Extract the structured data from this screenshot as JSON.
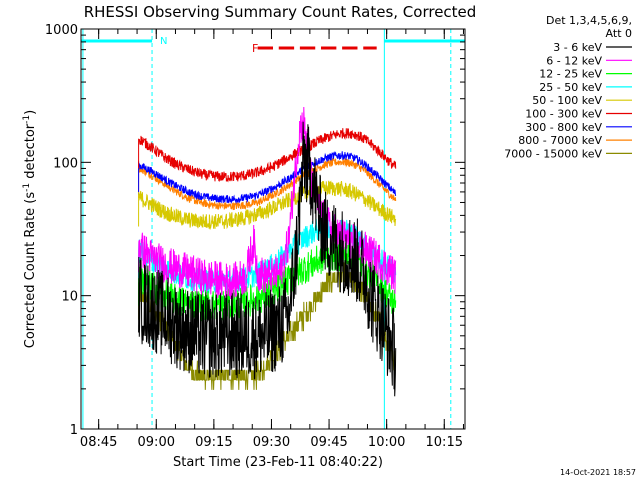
{
  "chart_data": {
    "type": "line",
    "title": "RHESSI Observing Summary Count Rates, Corrected",
    "xlabel": "Start Time (23-Feb-11 08:40:22)",
    "ylabel_main": "Corrected Count Rate (s",
    "ylabel_sup1": "-1",
    "ylabel_mid": " detector",
    "ylabel_sup2": "-1",
    "ylabel_end": ")",
    "yscale": "log",
    "ylim": [
      1,
      1000
    ],
    "xlim_minutes": [
      0,
      100
    ],
    "x_ticks": [
      {
        "min": 4.6,
        "label": "08:45"
      },
      {
        "min": 19.6,
        "label": "09:00"
      },
      {
        "min": 34.6,
        "label": "09:15"
      },
      {
        "min": 49.6,
        "label": "09:30"
      },
      {
        "min": 64.6,
        "label": "09:45"
      },
      {
        "min": 79.6,
        "label": "10:00"
      },
      {
        "min": 94.6,
        "label": "10:15"
      }
    ],
    "y_ticks": [
      {
        "value": 1,
        "label": "1"
      },
      {
        "value": 10,
        "label": "10"
      },
      {
        "value": 100,
        "label": "100"
      },
      {
        "value": 1000,
        "label": "1000"
      }
    ],
    "legend": {
      "title_line1": "Det 1,3,4,5,6,9,",
      "title_line2": "Att 0",
      "placement": "right",
      "entries": [
        {
          "label": "3 - 6 keV",
          "color": "#000000"
        },
        {
          "label": "6 - 12 keV",
          "color": "#ff00ff"
        },
        {
          "label": "12 - 25 keV",
          "color": "#00ff00"
        },
        {
          "label": "25 - 50 keV",
          "color": "#00ffff"
        },
        {
          "label": "50 - 100 keV",
          "color": "#d6c800"
        },
        {
          "label": "100 - 300 keV",
          "color": "#e60000"
        },
        {
          "label": "300 - 800 keV",
          "color": "#0000ff"
        },
        {
          "label": "800 - 7000 keV",
          "color": "#ff8000"
        },
        {
          "label": "7000 - 15000 keV",
          "color": "#8b8b00"
        }
      ]
    },
    "annotations": {
      "night_label": "N",
      "flare_label": "F",
      "night_color": "#00ffff",
      "flare_color": "#e60000",
      "night_segments": [
        [
          0,
          18.5
        ],
        [
          79.0,
          100
        ]
      ],
      "flare_segments": [
        [
          46.0,
          50.0
        ],
        [
          51.5,
          55.5
        ],
        [
          57.0,
          61.0
        ],
        [
          62.5,
          66.5
        ],
        [
          68.0,
          72.0
        ],
        [
          73.5,
          77.0
        ]
      ],
      "dashed_lines_min": [
        18.5,
        96.3
      ],
      "solid_lines_min": [
        0.5,
        79.0
      ]
    },
    "series": [
      {
        "name": "3 - 6 keV",
        "color": "#000000",
        "noise": 0.33,
        "x": [
          15,
          16,
          19,
          22,
          25,
          28,
          31,
          34,
          37,
          40,
          43,
          46,
          48,
          50,
          52,
          54,
          56,
          58,
          60,
          62,
          64,
          66,
          68,
          70,
          72,
          74,
          76,
          78,
          80,
          82
        ],
        "y": [
          10,
          9,
          8,
          7,
          6,
          5.5,
          5,
          5,
          5,
          5,
          5,
          5,
          5,
          5.5,
          6,
          7,
          20,
          110,
          80,
          40,
          28,
          25,
          22,
          20,
          18,
          14,
          9,
          7,
          5,
          3.5
        ]
      },
      {
        "name": "6 - 12 keV",
        "color": "#ff00ff",
        "noise": 0.14,
        "x": [
          15,
          16,
          19,
          22,
          25,
          28,
          31,
          34,
          37,
          40,
          43,
          44,
          45,
          46,
          48,
          50,
          52,
          54,
          56,
          57,
          58,
          59,
          60,
          62,
          64,
          66,
          68,
          70,
          72,
          74,
          76,
          78,
          80,
          82
        ],
        "y": [
          25,
          22,
          19,
          17,
          16,
          15,
          14,
          13.5,
          13,
          13,
          14,
          20,
          25,
          15,
          14,
          14,
          15,
          25,
          100,
          180,
          200,
          130,
          70,
          45,
          35,
          30,
          28,
          26,
          24,
          22,
          20,
          18,
          16,
          14
        ]
      },
      {
        "name": "12 - 25 keV",
        "color": "#00ff00",
        "noise": 0.12,
        "x": [
          15,
          16,
          19,
          22,
          25,
          28,
          31,
          34,
          37,
          40,
          43,
          46,
          48,
          50,
          52,
          54,
          56,
          58,
          60,
          62,
          64,
          66,
          68,
          70,
          72,
          74,
          76,
          78,
          80,
          82
        ],
        "y": [
          14,
          13,
          11.5,
          10,
          9.2,
          8.8,
          8.5,
          8.5,
          8.5,
          8.7,
          9,
          9.5,
          10,
          10.8,
          11.8,
          13,
          14.5,
          16,
          17,
          18.5,
          19.5,
          20,
          20,
          19.5,
          18,
          16,
          14,
          12,
          10,
          8.5
        ]
      },
      {
        "name": "25 - 50 keV",
        "color": "#00ffff",
        "noise": 0.09,
        "x": [
          15,
          16,
          19,
          22,
          25,
          28,
          31,
          34,
          37,
          40,
          43,
          46,
          48,
          50,
          52,
          54,
          56,
          58,
          60,
          62,
          64,
          66,
          68,
          70,
          72,
          74,
          76,
          78,
          80,
          82
        ],
        "y": [
          22,
          21,
          18,
          16,
          14.5,
          13.5,
          13,
          12.8,
          12.8,
          13,
          13.5,
          14.5,
          15.5,
          17,
          19,
          21.5,
          24,
          27,
          29.5,
          31.5,
          33,
          33,
          32,
          30,
          27,
          24,
          21,
          18.5,
          16.5,
          14.5
        ]
      },
      {
        "name": "50 - 100 keV",
        "color": "#d6c800",
        "noise": 0.06,
        "x": [
          15,
          16,
          19,
          22,
          25,
          28,
          31,
          34,
          37,
          40,
          43,
          46,
          48,
          50,
          52,
          54,
          56,
          58,
          60,
          62,
          64,
          66,
          68,
          70,
          72,
          74,
          76,
          78,
          80,
          82
        ],
        "y": [
          55,
          53,
          47,
          42,
          39,
          37,
          36,
          36,
          36,
          37,
          38.5,
          41,
          43,
          45.5,
          48.5,
          51.5,
          55,
          58,
          61,
          63,
          64,
          64,
          63,
          61,
          57,
          53,
          48,
          44,
          40.5,
          37.5
        ]
      },
      {
        "name": "100 - 300 keV",
        "color": "#e60000",
        "noise": 0.04,
        "x": [
          15,
          16,
          19,
          22,
          25,
          28,
          31,
          34,
          37,
          40,
          43,
          46,
          48,
          50,
          52,
          54,
          56,
          58,
          60,
          62,
          64,
          66,
          68,
          70,
          72,
          74,
          76,
          78,
          80,
          82
        ],
        "y": [
          150,
          145,
          125,
          108,
          96,
          88,
          82,
          79,
          78,
          78,
          80,
          84,
          88,
          93,
          100,
          108,
          117,
          126,
          135,
          145,
          153,
          160,
          165,
          166,
          160,
          148,
          133,
          118,
          103,
          92
        ]
      },
      {
        "name": "300 - 800 keV",
        "color": "#0000ff",
        "noise": 0.03,
        "x": [
          15,
          16,
          19,
          22,
          25,
          28,
          31,
          34,
          37,
          40,
          43,
          46,
          48,
          50,
          52,
          54,
          56,
          58,
          60,
          62,
          64,
          66,
          68,
          70,
          72,
          74,
          76,
          78,
          80,
          82
        ],
        "y": [
          95,
          93,
          84,
          74,
          66,
          60,
          56,
          54,
          53,
          53,
          54,
          57,
          60,
          64,
          69,
          75,
          82,
          89,
          96,
          103,
          108,
          112,
          113,
          111,
          105,
          96,
          85,
          75,
          66,
          58
        ]
      },
      {
        "name": "800 - 7000 keV",
        "color": "#ff8000",
        "noise": 0.03,
        "x": [
          15,
          16,
          19,
          22,
          25,
          28,
          31,
          34,
          37,
          40,
          43,
          46,
          48,
          50,
          52,
          54,
          56,
          58,
          60,
          62,
          64,
          66,
          68,
          70,
          72,
          74,
          76,
          78,
          80,
          82
        ],
        "y": [
          90,
          88,
          78,
          68,
          60,
          54,
          50,
          48,
          47,
          47,
          48,
          50,
          53,
          57,
          61,
          67,
          73,
          80,
          86,
          92,
          97,
          100,
          101,
          99,
          94,
          86,
          76,
          67,
          59,
          52
        ]
      },
      {
        "name": "7000 - 15000 keV",
        "color": "#8b8b00",
        "noise": 0.08,
        "step": 0.22,
        "x": [
          15,
          16,
          19,
          22,
          25,
          28,
          31,
          34,
          37,
          40,
          43,
          46,
          48,
          50,
          52,
          54,
          56,
          58,
          60,
          62,
          64,
          66,
          68,
          70,
          72,
          74,
          76,
          78,
          80,
          82
        ],
        "y": [
          11,
          10,
          8,
          6,
          4,
          3,
          2.5,
          2.5,
          2.5,
          2.5,
          2.5,
          2.5,
          3,
          3.5,
          4,
          5,
          6,
          7,
          8.5,
          10,
          12,
          13.5,
          14,
          13.5,
          12,
          10,
          8,
          6,
          4.5,
          3
        ]
      }
    ]
  },
  "footer": {
    "date_stamp": "14-Oct-2021 18:57"
  }
}
